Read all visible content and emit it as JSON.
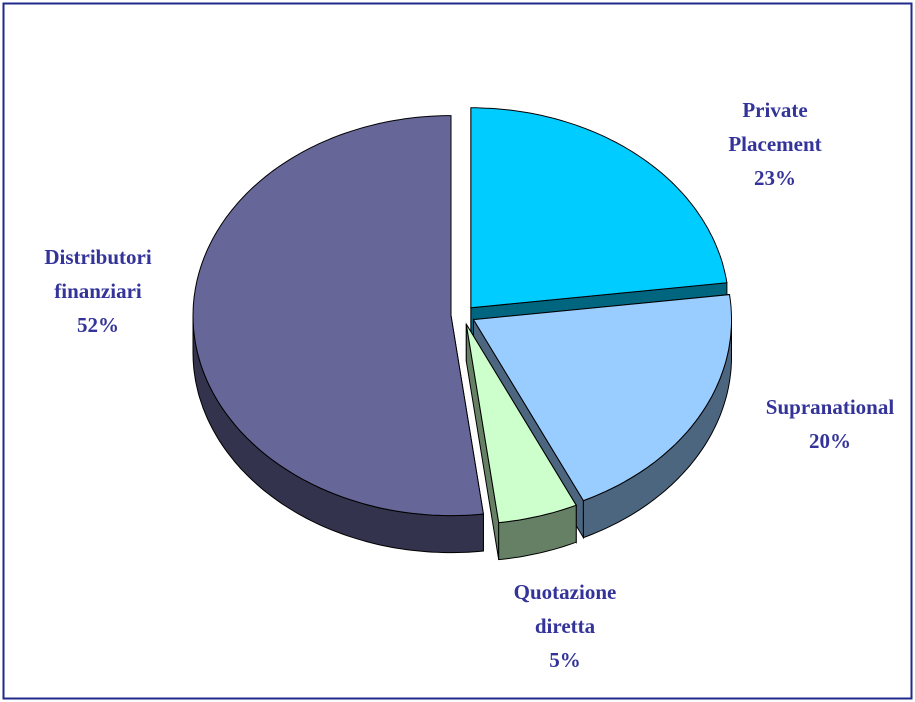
{
  "chart_data": {
    "type": "pie3d",
    "categories": [
      "Private Placement",
      "Supranational",
      "Quotazione diretta",
      "Distributori finanziari"
    ],
    "values": [
      23,
      20,
      5,
      52
    ],
    "value_labels": [
      "23%",
      "20%",
      "5%",
      "52%"
    ],
    "colors": [
      "#00ccff",
      "#99ccff",
      "#ccffcc",
      "#666699"
    ],
    "side_colors": [
      "#006680",
      "#4d6680",
      "#668066",
      "#33334d"
    ]
  }
}
